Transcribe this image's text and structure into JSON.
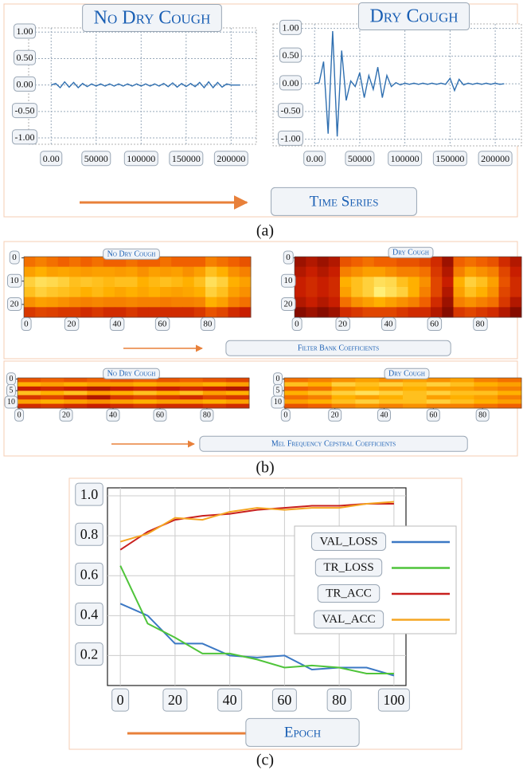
{
  "panels": [
    {
      "label": "(a)",
      "captions": [
        "Time Series"
      ]
    },
    {
      "label": "(b)",
      "captions": [
        "Filter Bank Coefficients",
        "Mel Frequency Cepstral Coefficients"
      ]
    },
    {
      "label": "(c)",
      "captions": [
        "Epoch"
      ]
    }
  ],
  "chart_data": [
    {
      "type": "line",
      "title": "No Dry Cough",
      "color": "#2f6fb0",
      "grid": true,
      "x": [
        0,
        5000,
        10000,
        15000,
        20000,
        25000,
        30000,
        35000,
        40000,
        45000,
        50000,
        55000,
        60000,
        65000,
        70000,
        75000,
        80000,
        85000,
        90000,
        95000,
        100000,
        105000,
        110000,
        115000,
        120000,
        125000,
        130000,
        135000,
        140000,
        145000,
        150000,
        155000,
        160000,
        165000,
        170000,
        175000,
        180000,
        185000,
        190000,
        195000,
        200000,
        205000,
        210000
      ],
      "values": [
        0,
        0.03,
        -0.05,
        0.06,
        -0.04,
        0.05,
        -0.05,
        0.03,
        -0.03,
        0.02,
        -0.02,
        0.02,
        -0.02,
        0.02,
        -0.02,
        0.02,
        -0.02,
        0.02,
        -0.02,
        0.02,
        -0.02,
        0.02,
        -0.02,
        0.02,
        -0.02,
        0.03,
        -0.03,
        0.04,
        -0.04,
        0.03,
        -0.03,
        0.03,
        -0.03,
        0.05,
        -0.05,
        0.06,
        -0.05,
        0.05,
        -0.04,
        0.02,
        0,
        0,
        0
      ],
      "xlim": [
        -25000,
        228000
      ],
      "ylim": [
        -1.12,
        1.08
      ],
      "xticks": [
        {
          "value": 0,
          "label": "0.00"
        },
        50000,
        100000,
        150000,
        200000
      ],
      "yticks": [
        {
          "value": 1,
          "label": "1.00"
        },
        {
          "value": 0.5,
          "label": "0.50"
        },
        {
          "value": 0,
          "label": "0.00"
        },
        {
          "value": -0.5,
          "label": "-0.50"
        },
        {
          "value": -1,
          "label": "-1.00"
        }
      ]
    },
    {
      "type": "line",
      "title": "Dry Cough",
      "color": "#2f6fb0",
      "grid": true,
      "x": [
        0,
        5000,
        10000,
        15000,
        20000,
        25000,
        30000,
        35000,
        40000,
        45000,
        50000,
        55000,
        60000,
        65000,
        70000,
        75000,
        80000,
        85000,
        90000,
        95000,
        100000,
        105000,
        110000,
        115000,
        120000,
        125000,
        130000,
        135000,
        140000,
        145000,
        150000,
        155000,
        160000,
        165000,
        170000,
        175000,
        180000,
        185000,
        190000,
        195000,
        200000,
        205000,
        210000
      ],
      "values": [
        0,
        0.02,
        0.4,
        -0.9,
        0.95,
        -0.95,
        0.6,
        -0.3,
        0.05,
        -0.05,
        0.2,
        -0.25,
        0.15,
        -0.1,
        0.3,
        -0.25,
        0.15,
        -0.05,
        0.02,
        -0.02,
        0.01,
        -0.01,
        0.01,
        -0.01,
        0.01,
        -0.01,
        0.01,
        -0.01,
        0.01,
        -0.01,
        0.1,
        -0.12,
        0.08,
        -0.02,
        0.01,
        -0.01,
        0.01,
        -0.01,
        0.01,
        -0.01,
        0.01,
        -0.01,
        0
      ],
      "xlim": [
        -46000,
        229000
      ],
      "ylim": [
        -1.12,
        1.08
      ],
      "xticks": [
        {
          "value": 0,
          "label": "0.00"
        },
        50000,
        100000,
        150000,
        200000
      ],
      "yticks": [
        {
          "value": 1,
          "label": "1.00"
        },
        {
          "value": 0.5,
          "label": "0.50"
        },
        {
          "value": 0,
          "label": "0.00"
        },
        {
          "value": -0.5,
          "label": "-0.50"
        },
        {
          "value": -1,
          "label": "-1.00"
        }
      ]
    },
    {
      "type": "heatmap",
      "title": "No Dry Cough",
      "xlim": [
        -1,
        99
      ],
      "ylim": [
        -0.5,
        25.5
      ],
      "xticks": [
        0,
        20,
        40,
        60,
        80
      ],
      "yticks": [
        0,
        10,
        20
      ],
      "values": [
        [
          0.55,
          0.6,
          0.55,
          0.5,
          0.55,
          0.5,
          0.55,
          0.5,
          0.5,
          0.55,
          0.5,
          0.5,
          0.55,
          0.5,
          0.5,
          0.5,
          0.6,
          0.55,
          0.5,
          0.45
        ],
        [
          0.7,
          0.75,
          0.7,
          0.72,
          0.7,
          0.68,
          0.7,
          0.7,
          0.68,
          0.7,
          0.65,
          0.7,
          0.68,
          0.7,
          0.65,
          0.7,
          0.8,
          0.75,
          0.65,
          0.6
        ],
        [
          0.85,
          0.9,
          0.88,
          0.85,
          0.8,
          0.82,
          0.8,
          0.78,
          0.8,
          0.8,
          0.75,
          0.78,
          0.8,
          0.78,
          0.75,
          0.8,
          0.9,
          0.85,
          0.75,
          0.7
        ],
        [
          0.8,
          0.85,
          0.82,
          0.8,
          0.78,
          0.75,
          0.78,
          0.75,
          0.72,
          0.75,
          0.72,
          0.75,
          0.72,
          0.7,
          0.72,
          0.75,
          0.85,
          0.8,
          0.7,
          0.65
        ],
        [
          0.65,
          0.7,
          0.68,
          0.65,
          0.62,
          0.6,
          0.62,
          0.6,
          0.6,
          0.62,
          0.6,
          0.6,
          0.58,
          0.6,
          0.6,
          0.62,
          0.75,
          0.7,
          0.6,
          0.55
        ],
        [
          0.35,
          0.4,
          0.38,
          0.35,
          0.35,
          0.3,
          0.35,
          0.3,
          0.3,
          0.35,
          0.3,
          0.3,
          0.3,
          0.3,
          0.3,
          0.35,
          0.45,
          0.4,
          0.3,
          0.25
        ]
      ]
    },
    {
      "type": "heatmap",
      "title": "Dry Cough",
      "xlim": [
        -1,
        98
      ],
      "ylim": [
        -0.5,
        25.5
      ],
      "xticks": [
        0,
        20,
        40,
        60,
        80
      ],
      "yticks": [
        0,
        10,
        20
      ],
      "values": [
        [
          0.15,
          0.2,
          0.15,
          0.2,
          0.45,
          0.5,
          0.55,
          0.5,
          0.5,
          0.45,
          0.45,
          0.4,
          0.3,
          0.15,
          0.5,
          0.55,
          0.5,
          0.45,
          0.3,
          0.2
        ],
        [
          0.2,
          0.25,
          0.2,
          0.25,
          0.6,
          0.65,
          0.7,
          0.7,
          0.65,
          0.6,
          0.6,
          0.55,
          0.35,
          0.2,
          0.6,
          0.7,
          0.65,
          0.6,
          0.4,
          0.25
        ],
        [
          0.25,
          0.3,
          0.25,
          0.3,
          0.75,
          0.8,
          0.85,
          0.9,
          0.88,
          0.8,
          0.75,
          0.65,
          0.4,
          0.25,
          0.75,
          0.85,
          0.8,
          0.7,
          0.45,
          0.3
        ],
        [
          0.25,
          0.3,
          0.25,
          0.3,
          0.7,
          0.8,
          0.85,
          0.95,
          0.9,
          0.85,
          0.75,
          0.6,
          0.4,
          0.2,
          0.7,
          0.8,
          0.75,
          0.65,
          0.4,
          0.3
        ],
        [
          0.2,
          0.25,
          0.2,
          0.25,
          0.55,
          0.65,
          0.7,
          0.75,
          0.7,
          0.65,
          0.6,
          0.5,
          0.3,
          0.15,
          0.6,
          0.65,
          0.6,
          0.55,
          0.35,
          0.2
        ],
        [
          0.1,
          0.15,
          0.1,
          0.15,
          0.3,
          0.35,
          0.4,
          0.4,
          0.4,
          0.35,
          0.3,
          0.3,
          0.2,
          0.1,
          0.35,
          0.4,
          0.35,
          0.3,
          0.2,
          0.1
        ]
      ]
    },
    {
      "type": "heatmap",
      "title": "No Dry Cough",
      "xlim": [
        -0.7,
        98
      ],
      "ylim": [
        -0.5,
        12.5
      ],
      "xticks": [
        0,
        20,
        40,
        60,
        80
      ],
      "yticks": [
        0,
        5,
        10
      ],
      "values": [
        [
          0.45,
          0.5,
          0.45,
          0.5,
          0.45,
          0.5,
          0.45,
          0.5,
          0.45,
          0.4
        ],
        [
          0.75,
          0.7,
          0.75,
          0.7,
          0.7,
          0.75,
          0.7,
          0.7,
          0.75,
          0.7
        ],
        [
          0.25,
          0.3,
          0.25,
          0.2,
          0.25,
          0.3,
          0.25,
          0.3,
          0.25,
          0.2
        ],
        [
          0.8,
          0.75,
          0.8,
          0.7,
          0.75,
          0.8,
          0.75,
          0.8,
          0.7,
          0.75
        ],
        [
          0.35,
          0.4,
          0.3,
          0.2,
          0.35,
          0.4,
          0.35,
          0.3,
          0.4,
          0.35
        ],
        [
          0.7,
          0.75,
          0.7,
          0.65,
          0.7,
          0.75,
          0.7,
          0.7,
          0.75,
          0.7
        ],
        [
          0.3,
          0.35,
          0.3,
          0.25,
          0.3,
          0.35,
          0.3,
          0.3,
          0.35,
          0.3
        ]
      ]
    },
    {
      "type": "heatmap",
      "title": "Dry Cough",
      "xlim": [
        -0.6,
        95.8
      ],
      "ylim": [
        -0.5,
        12.5
      ],
      "xticks": [
        0,
        20,
        40,
        60,
        80
      ],
      "yticks": [
        0,
        5,
        10
      ],
      "values": [
        [
          0.55,
          0.6,
          0.65,
          0.7,
          0.65,
          0.7,
          0.65,
          0.7,
          0.6,
          0.55
        ],
        [
          0.8,
          0.75,
          0.85,
          0.8,
          0.85,
          0.8,
          0.85,
          0.8,
          0.75,
          0.7
        ],
        [
          0.5,
          0.55,
          0.7,
          0.75,
          0.7,
          0.75,
          0.7,
          0.7,
          0.65,
          0.6
        ],
        [
          0.75,
          0.8,
          0.85,
          0.9,
          0.85,
          0.8,
          0.85,
          0.8,
          0.8,
          0.75
        ],
        [
          0.55,
          0.6,
          0.75,
          0.7,
          0.75,
          0.8,
          0.7,
          0.75,
          0.7,
          0.6
        ],
        [
          0.7,
          0.75,
          0.8,
          0.85,
          0.8,
          0.8,
          0.85,
          0.8,
          0.75,
          0.7
        ],
        [
          0.45,
          0.5,
          0.6,
          0.65,
          0.6,
          0.65,
          0.6,
          0.6,
          0.55,
          0.5
        ]
      ]
    },
    {
      "type": "line",
      "grid": true,
      "legend": "right",
      "x": [
        0,
        10,
        20,
        30,
        40,
        50,
        60,
        70,
        80,
        90,
        100
      ],
      "series": [
        {
          "name": "VAL_LOSS",
          "color": "#3b78c4",
          "values": [
            0.46,
            0.4,
            0.26,
            0.26,
            0.2,
            0.19,
            0.2,
            0.13,
            0.14,
            0.14,
            0.1
          ]
        },
        {
          "name": "TR_LOSS",
          "color": "#4fc43a",
          "values": [
            0.65,
            0.36,
            0.29,
            0.21,
            0.21,
            0.18,
            0.14,
            0.15,
            0.14,
            0.11,
            0.11
          ]
        },
        {
          "name": "TR_ACC",
          "color": "#c8201e",
          "values": [
            0.73,
            0.82,
            0.88,
            0.9,
            0.91,
            0.93,
            0.94,
            0.95,
            0.95,
            0.96,
            0.96
          ]
        },
        {
          "name": "VAL_ACC",
          "color": "#f5a623",
          "values": [
            0.77,
            0.81,
            0.89,
            0.88,
            0.92,
            0.94,
            0.93,
            0.94,
            0.94,
            0.96,
            0.97
          ]
        }
      ],
      "xlim": [
        -4.7,
        104.4
      ],
      "ylim": [
        0.05,
        1.04
      ],
      "xticks": [
        0,
        20,
        40,
        60,
        80,
        100
      ],
      "yticks": [
        {
          "value": 1,
          "label": "1.0"
        },
        0.8,
        0.6,
        0.4,
        0.2
      ]
    }
  ]
}
